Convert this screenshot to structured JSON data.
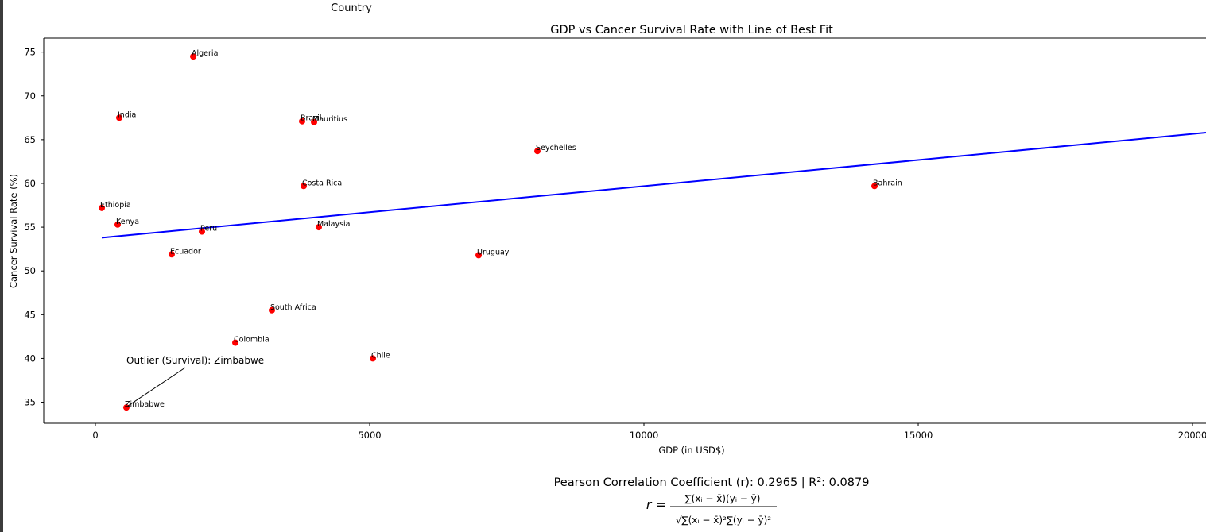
{
  "chart_data": {
    "type": "scatter",
    "title": "GDP vs Cancer Survival Rate with Line of Best Fit",
    "legend_title": "Country",
    "x_label": "GDP (in USD$)",
    "y_label": "Cancer Survival Rate (%)",
    "point_labels": [
      "Algeria",
      "India",
      "Brazil",
      "Mauritius",
      "Seychelles",
      "Costa Rica",
      "Bahrain",
      "Ethiopia",
      "Kenya",
      "Peru",
      "Malaysia",
      "Ecuador",
      "Uruguay",
      "South Africa",
      "Colombia",
      "Chile",
      "Zimbabwe"
    ],
    "x": [
      1783,
      435,
      3768,
      3986,
      8058,
      3797,
      14203,
      116,
      406,
      1942,
      4072,
      1391,
      6986,
      3217,
      2551,
      5058,
      565
    ],
    "values": [
      74.5,
      67.5,
      67.1,
      67.0,
      63.7,
      59.7,
      59.7,
      57.2,
      55.3,
      54.5,
      55.0,
      51.9,
      51.8,
      45.5,
      41.8,
      40.0,
      34.4
    ],
    "color": "#ff0000",
    "fit_line": {
      "x": [
        116,
        20246
      ],
      "values": [
        53.8,
        65.8
      ],
      "color": "#0000ff"
    },
    "annotation": {
      "text": "Outlier (Survival): Zimbabwe",
      "color": "#800080"
    },
    "xlim": [
      -942,
      20246
    ],
    "ylim": [
      32.6,
      76.6
    ],
    "xticks": [
      0,
      5000,
      10000,
      15000,
      20000
    ],
    "yticks": [
      35,
      40,
      45,
      50,
      55,
      60,
      65,
      70,
      75
    ],
    "grid": false,
    "stats_text": "Pearson Correlation Coefficient (r): 0.2965 | R²: 0.0879",
    "formula": {
      "lhs": "r =",
      "numerator": "∑(xᵢ − x̄)(yᵢ − ȳ)",
      "denominator": "√∑(xᵢ − x̄)²∑(yᵢ − ȳ)²"
    }
  }
}
